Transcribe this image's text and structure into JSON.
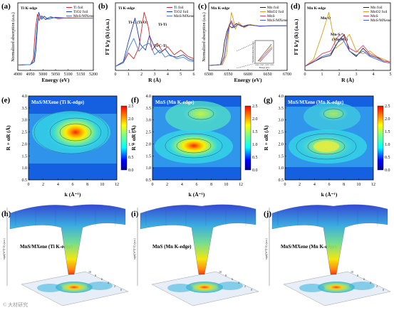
{
  "figure": {
    "panel_letters": [
      "(a)",
      "(b)",
      "(c)",
      "(d)",
      "(e)",
      "(f)",
      "(g)",
      "(h)",
      "(i)",
      "(j)"
    ],
    "watermark": "© 大材研究"
  },
  "colors": {
    "Ti foil": "#d62728",
    "TiO2 foil": "#1f3fa8",
    "MnS/MXene": "#3f7fd8",
    "Mn foil": "#222222",
    "MnO2 foil": "#d4a017",
    "MnS": "#e0406a",
    "MnS/MXene (Mn)": "#3a5fd8"
  },
  "chart_data": [
    {
      "panel": "(a)",
      "type": "line",
      "title": "Ti K-edge",
      "xlabel": "Energy (eV)",
      "ylabel": "Normalized absorption (a.u.)",
      "xlim": [
        4900,
        5200
      ],
      "xticks": [
        "4900",
        "4950",
        "5000",
        "5050",
        "5100",
        "5150",
        "5200"
      ],
      "legend": "top-right",
      "series": [
        {
          "name": "Ti foil",
          "x": [
            4900,
            4950,
            4962,
            4966,
            4970,
            4978,
            4985,
            4995,
            5010,
            5030,
            5060,
            5100,
            5150,
            5200
          ],
          "y": [
            0.05,
            0.06,
            0.18,
            0.52,
            0.78,
            1.08,
            0.95,
            1.05,
            0.97,
            1.03,
            0.99,
            1.01,
            1.0,
            1.0
          ]
        },
        {
          "name": "TiO2 foil",
          "x": [
            4900,
            4950,
            4966,
            4972,
            4978,
            4983,
            4988,
            4995,
            5005,
            5020,
            5050,
            5100,
            5150,
            5200
          ],
          "y": [
            0.05,
            0.06,
            0.12,
            0.35,
            0.85,
            1.12,
            1.05,
            0.98,
            1.04,
            0.98,
            1.02,
            1.0,
            1.0,
            1.0
          ]
        },
        {
          "name": "MnS/MXene",
          "x": [
            4900,
            4950,
            4964,
            4970,
            4976,
            4982,
            4988,
            4996,
            5008,
            5025,
            5055,
            5100,
            5150,
            5200
          ],
          "y": [
            0.05,
            0.06,
            0.15,
            0.45,
            0.85,
            1.08,
            0.98,
            1.03,
            0.98,
            1.02,
            1.0,
            1.0,
            1.0,
            1.0
          ]
        }
      ]
    },
    {
      "panel": "(b)",
      "type": "line",
      "title": "Ti K-edge",
      "xlabel": "R (Å)",
      "ylabel": "FT k³χ (k) (a.u.)",
      "xlim": [
        0,
        6
      ],
      "xticks": [
        "0",
        "1",
        "2",
        "3",
        "4",
        "5",
        "6"
      ],
      "legend": "top-right",
      "annotations": [
        "Ti-C (Ti-O)",
        "Ti-Ti",
        "Ti-C-Ti"
      ],
      "series": [
        {
          "name": "Ti foil",
          "x": [
            0,
            0.6,
            1.0,
            1.4,
            1.8,
            2.2,
            2.5,
            2.8,
            3.2,
            3.6,
            4.0,
            4.5,
            5.0,
            5.5,
            6.0
          ],
          "y": [
            0.02,
            0.08,
            0.25,
            0.15,
            0.35,
            0.95,
            0.72,
            0.3,
            0.42,
            0.28,
            0.36,
            0.22,
            0.3,
            0.2,
            0.15
          ]
        },
        {
          "name": "TiO2 foil",
          "x": [
            0,
            0.6,
            1.0,
            1.5,
            1.9,
            2.3,
            2.6,
            3.0,
            3.4,
            3.8,
            4.2,
            4.7,
            5.2,
            5.6,
            6.0
          ],
          "y": [
            0.02,
            0.1,
            0.45,
            0.85,
            0.4,
            0.3,
            0.55,
            0.35,
            0.25,
            0.32,
            0.2,
            0.18,
            0.22,
            0.15,
            0.12
          ]
        },
        {
          "name": "MnS/MXene",
          "x": [
            0,
            0.6,
            1.0,
            1.4,
            1.8,
            2.2,
            2.6,
            3.0,
            3.4,
            3.8,
            4.2,
            4.7,
            5.2,
            5.6,
            6.0
          ],
          "y": [
            0.02,
            0.08,
            0.32,
            0.5,
            0.28,
            0.38,
            0.42,
            0.22,
            0.3,
            0.18,
            0.22,
            0.15,
            0.18,
            0.12,
            0.1
          ]
        }
      ]
    },
    {
      "panel": "(c)",
      "type": "line",
      "title": "Mn K-edge",
      "xlabel": "Energy (eV)",
      "ylabel": "Normalized absorption (a.u.)",
      "xlim": [
        6500,
        6700
      ],
      "xticks": [
        "6500",
        "6550",
        "6600",
        "6650",
        "6700"
      ],
      "legend": "top-right",
      "inset": {
        "xlabel": "Energy (eV)",
        "ylabel": "Normalized absorption (a.u.)",
        "xticks": [
          "6540",
          "6545",
          "6550",
          "6555"
        ]
      },
      "series": [
        {
          "name": "Mn foil",
          "x": [
            6500,
            6530,
            6536,
            6540,
            6546,
            6552,
            6560,
            6570,
            6585,
            6600,
            6630,
            6660,
            6700
          ],
          "y": [
            0.05,
            0.07,
            0.3,
            0.6,
            0.85,
            1.0,
            0.95,
            1.05,
            0.98,
            1.02,
            0.99,
            1.0,
            1.0
          ]
        },
        {
          "name": "MnO2 foil",
          "x": [
            6500,
            6535,
            6545,
            6552,
            6558,
            6562,
            6568,
            6576,
            6590,
            6605,
            6630,
            6660,
            6700
          ],
          "y": [
            0.05,
            0.07,
            0.3,
            0.9,
            1.32,
            1.18,
            0.92,
            1.08,
            0.95,
            1.03,
            0.98,
            1.0,
            1.0
          ]
        },
        {
          "name": "MnS",
          "x": [
            6500,
            6532,
            6540,
            6546,
            6552,
            6558,
            6565,
            6575,
            6590,
            6605,
            6630,
            6660,
            6700
          ],
          "y": [
            0.05,
            0.07,
            0.28,
            0.7,
            1.02,
            1.12,
            0.96,
            1.04,
            0.98,
            1.02,
            0.99,
            1.0,
            1.0
          ]
        },
        {
          "name": "MnS/MXene",
          "x": [
            6500,
            6532,
            6540,
            6546,
            6552,
            6557,
            6564,
            6574,
            6590,
            6605,
            6630,
            6660,
            6700
          ],
          "y": [
            0.05,
            0.07,
            0.25,
            0.65,
            0.98,
            1.08,
            0.95,
            1.03,
            0.97,
            1.02,
            0.99,
            1.0,
            1.0
          ]
        }
      ]
    },
    {
      "panel": "(d)",
      "type": "line",
      "title": "Mn K-edge",
      "xlabel": "R (Å)",
      "ylabel": "FT k³χ (k) (a.u.)",
      "xlim": [
        0,
        5
      ],
      "xticks": [
        "0",
        "1",
        "2",
        "3",
        "4",
        "5"
      ],
      "legend": "top-right",
      "annotations": [
        "Mn-O",
        "Mn-S",
        "(Mn-Mn)"
      ],
      "series": [
        {
          "name": "Mn foil",
          "x": [
            0,
            0.5,
            1.0,
            1.5,
            2.0,
            2.3,
            2.6,
            3.0,
            3.4,
            3.8,
            4.2,
            4.6,
            5.0
          ],
          "y": [
            0.02,
            0.1,
            0.18,
            0.22,
            0.5,
            0.6,
            0.3,
            0.2,
            0.35,
            0.22,
            0.18,
            0.12,
            0.1
          ]
        },
        {
          "name": "MnO2 foil",
          "x": [
            0,
            0.5,
            1.0,
            1.4,
            1.8,
            2.2,
            2.6,
            3.0,
            3.4,
            3.8,
            4.2,
            4.6,
            5.0
          ],
          "y": [
            0.02,
            0.15,
            0.6,
            1.0,
            0.35,
            0.45,
            0.6,
            0.3,
            0.25,
            0.3,
            0.2,
            0.15,
            0.1
          ]
        },
        {
          "name": "MnS",
          "x": [
            0,
            0.5,
            1.0,
            1.5,
            1.9,
            2.2,
            2.6,
            3.0,
            3.4,
            3.8,
            4.2,
            4.6,
            5.0
          ],
          "y": [
            0.02,
            0.12,
            0.25,
            0.3,
            0.55,
            0.62,
            0.35,
            0.28,
            0.4,
            0.25,
            0.2,
            0.12,
            0.1
          ]
        },
        {
          "name": "MnS/MXene",
          "x": [
            0,
            0.5,
            1.0,
            1.5,
            1.9,
            2.2,
            2.6,
            3.0,
            3.4,
            3.8,
            4.2,
            4.6,
            5.0
          ],
          "y": [
            0.02,
            0.1,
            0.2,
            0.25,
            0.45,
            0.52,
            0.3,
            0.22,
            0.3,
            0.2,
            0.15,
            0.1,
            0.08
          ]
        }
      ]
    },
    {
      "panel": "(e)",
      "type": "heatmap",
      "title": "MnS/MXene (Ti K-edge)",
      "xlabel": "k (Å⁻¹)",
      "ylabel": "R + αR (Å)",
      "xticks": [
        "0",
        "2",
        "4",
        "6",
        "8",
        "10",
        "12"
      ],
      "yticks": [
        "0.5",
        "1.0",
        "1.5",
        "2.0",
        "2.5",
        "3.0",
        "3.5",
        "4.0"
      ],
      "colorbar_ticks": [
        "0.0",
        "0.5",
        "1.0",
        "1.5",
        "2.0",
        "2.5"
      ],
      "hotspots": [
        {
          "k": 6.5,
          "R": 2.5,
          "intensity": 2.4
        }
      ]
    },
    {
      "panel": "(f)",
      "type": "heatmap",
      "title": "MnS (Mn K-edge)",
      "xlabel": "k (Å⁻¹)",
      "ylabel": "R + αR (Å)",
      "xticks": [
        "0",
        "2",
        "4",
        "6",
        "8",
        "10",
        "12"
      ],
      "yticks": [
        "0.5",
        "1.0",
        "1.5",
        "2.0",
        "2.5",
        "3.0",
        "3.5",
        "4.0"
      ],
      "colorbar_ticks": [
        "0.0",
        "0.5",
        "1.0",
        "1.5",
        "2.0",
        "2.5"
      ],
      "hotspots": [
        {
          "k": 5.5,
          "R": 2.1,
          "intensity": 2.3
        },
        {
          "k": 6.0,
          "R": 3.4,
          "intensity": 1.0
        }
      ]
    },
    {
      "panel": "(g)",
      "type": "heatmap",
      "title": "MnS/MXene (Mn K-edge)",
      "xlabel": "k (Å⁻¹)",
      "ylabel": "R + αR (Å)",
      "xticks": [
        "0",
        "2",
        "4",
        "6",
        "8",
        "10",
        "12"
      ],
      "yticks": [
        "0.5",
        "1.0",
        "1.5",
        "2.0",
        "2.5",
        "3.0",
        "3.5",
        "4.0"
      ],
      "colorbar_ticks": [
        "0.0",
        "0.5",
        "1.0",
        "1.5",
        "2.0",
        "2.5"
      ],
      "hotspots": [
        {
          "k": 5.5,
          "R": 2.1,
          "intensity": 1.9
        },
        {
          "k": 6.0,
          "R": 3.4,
          "intensity": 0.9
        }
      ]
    },
    {
      "panel": "(h)",
      "type": "surface",
      "title": "MnS/MXene (Ti K-edge)",
      "zlabel": "sqrt(|WT|^2) (a.u.)",
      "floor_ticks": [
        "10",
        "8",
        "6",
        "4",
        "2",
        "0"
      ]
    },
    {
      "panel": "(i)",
      "type": "surface",
      "title": "MnS (Mn K-edge)",
      "zlabel": "sqrt(|WT|^2) (a.u.)",
      "floor_ticks": [
        "10",
        "8",
        "6",
        "4",
        "2",
        "0"
      ]
    },
    {
      "panel": "(j)",
      "type": "surface",
      "title": "MnS/MXene (Mn K-edge)",
      "zlabel": "sqrt(|WT|^2) (a.u.)",
      "floor_ticks": [
        "10",
        "8",
        "6",
        "4",
        "2",
        "0"
      ]
    }
  ]
}
